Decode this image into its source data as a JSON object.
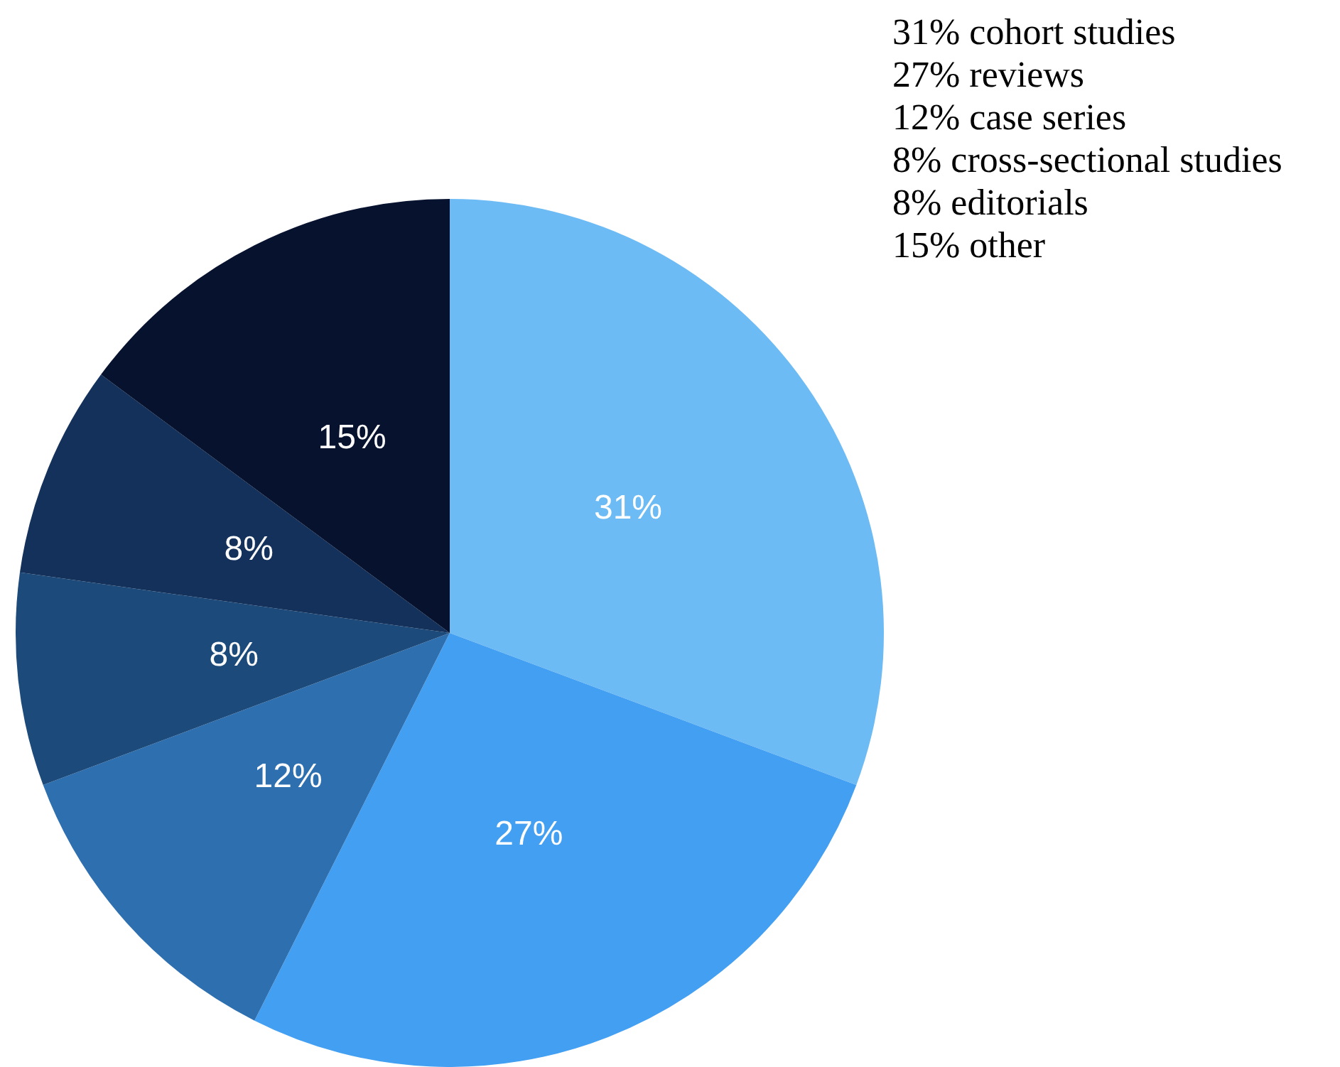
{
  "chart_data": {
    "type": "pie",
    "categories": [
      null,
      null,
      null,
      null,
      null,
      null
    ],
    "values": [
      31,
      27,
      12,
      8,
      8,
      15
    ],
    "colors": [
      "#6dbbf5",
      "#439ff2",
      "#2e6fb0",
      "#1c4a7a",
      "#13315a",
      "#06122e"
    ],
    "value_labels": [
      "31%",
      "27%",
      "12%",
      "8%",
      "8%",
      "15%"
    ],
    "annotations": [
      "31% cohort studies",
      "27% reviews",
      "12% case series",
      "8% cross-sectional studies",
      "8% editorials",
      "15% other"
    ]
  }
}
